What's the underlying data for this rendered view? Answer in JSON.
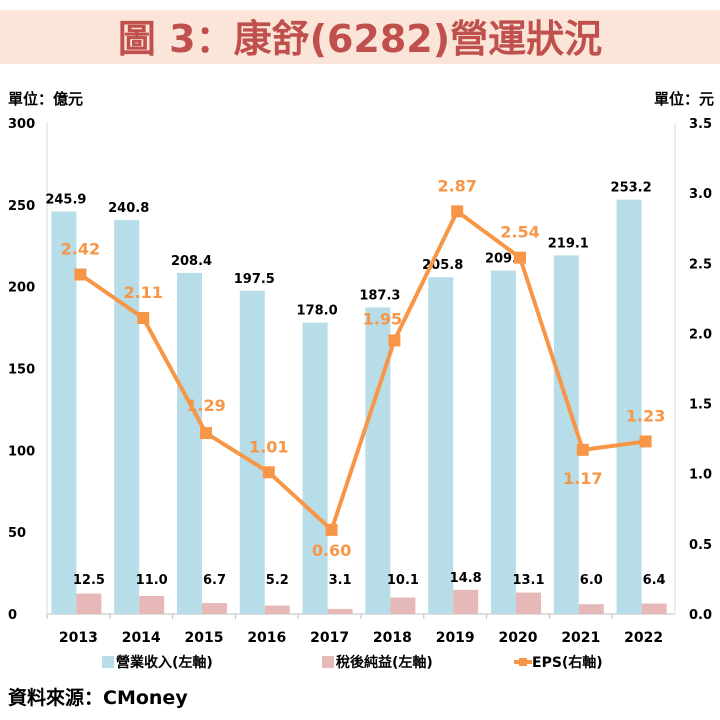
{
  "title": "圖 3：康舒(6282)營運狀況",
  "left_unit": "單位：億元",
  "right_unit": "單位：元",
  "source": "資料來源：CMoney",
  "colors": {
    "title_bg": "#fbe4d8",
    "title_text": "#c0504d",
    "revenue": "#b7dde8",
    "profit": "#e6b9b8",
    "eps": "#f79646",
    "eps_label": "#f79646"
  },
  "chart_data": {
    "type": "bar+line",
    "categories": [
      "2013",
      "2014",
      "2015",
      "2016",
      "2017",
      "2018",
      "2019",
      "2020",
      "2021",
      "2022"
    ],
    "series": [
      {
        "name": "營業收入(左軸)",
        "type": "bar",
        "axis": "left",
        "values": [
          245.9,
          240.8,
          208.4,
          197.5,
          178.0,
          187.3,
          205.8,
          209.8,
          219.1,
          253.2
        ],
        "labels": [
          "245.9",
          "240.8",
          "208.4",
          "197.5",
          "178.0",
          "187.3",
          "205.8",
          "209.8",
          "219.1",
          "253.2"
        ]
      },
      {
        "name": "稅後純益(左軸)",
        "type": "bar",
        "axis": "left",
        "values": [
          12.5,
          11.0,
          6.7,
          5.2,
          3.1,
          10.1,
          14.8,
          13.1,
          6.0,
          6.4
        ],
        "labels": [
          "12.5",
          "11.0",
          "6.7",
          "5.2",
          "3.1",
          "10.1",
          "14.8",
          "13.1",
          "6.0",
          "6.4"
        ]
      },
      {
        "name": "EPS(右軸)",
        "type": "line",
        "axis": "right",
        "values": [
          2.42,
          2.11,
          1.29,
          1.01,
          0.6,
          1.95,
          2.87,
          2.54,
          1.17,
          1.23
        ],
        "labels": [
          "2.42",
          "2.11",
          "1.29",
          "1.01",
          "0.60",
          "1.95",
          "2.87",
          "2.54",
          "1.17",
          "1.23"
        ]
      }
    ],
    "left_axis": {
      "min": 0,
      "max": 300,
      "ticks": [
        "0",
        "50",
        "100",
        "150",
        "200",
        "250",
        "300"
      ]
    },
    "right_axis": {
      "min": 0,
      "max": 3.5,
      "ticks": [
        "0.0",
        "0.5",
        "1.0",
        "1.5",
        "2.0",
        "2.5",
        "3.0",
        "3.5"
      ]
    },
    "grid": false,
    "legend": "bottom"
  }
}
